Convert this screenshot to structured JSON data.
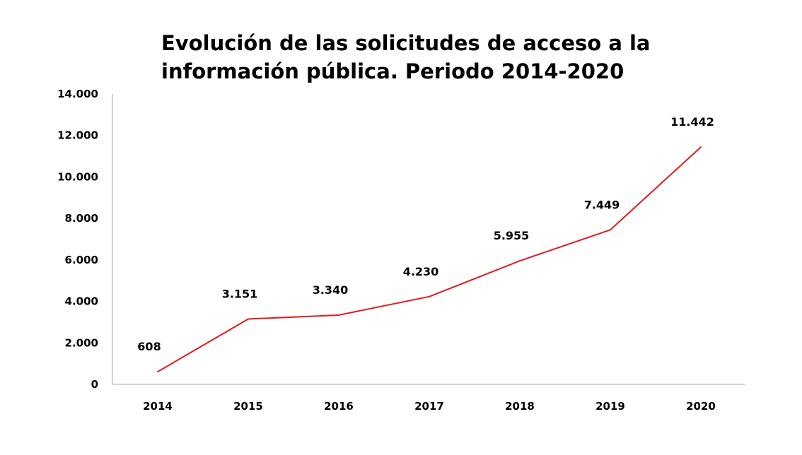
{
  "chart_data": {
    "type": "line",
    "title_lines": [
      "Evolución de las solicitudes de acceso a la",
      "información pública. Periodo 2014-2020"
    ],
    "xlabel": "",
    "ylabel": "",
    "categories": [
      "2014",
      "2015",
      "2016",
      "2017",
      "2018",
      "2019",
      "2020"
    ],
    "series": [
      {
        "values": [
          608,
          3151,
          3340,
          4230,
          5955,
          7449,
          11442
        ],
        "data_labels": [
          "608",
          "3.151",
          "3.340",
          "4.230",
          "5.955",
          "7.449",
          "11.442"
        ],
        "color": "#e31a1c"
      }
    ],
    "ylim": [
      0,
      14000
    ],
    "yticks": [
      0,
      2000,
      4000,
      6000,
      8000,
      10000,
      12000,
      14000
    ],
    "ytick_labels": [
      "0",
      "2.000",
      "4.000",
      "6.000",
      "8.000",
      "10.000",
      "12.000",
      "14.000"
    ],
    "grid": false,
    "legend": "none",
    "axis_color": "#a6a6a6"
  }
}
